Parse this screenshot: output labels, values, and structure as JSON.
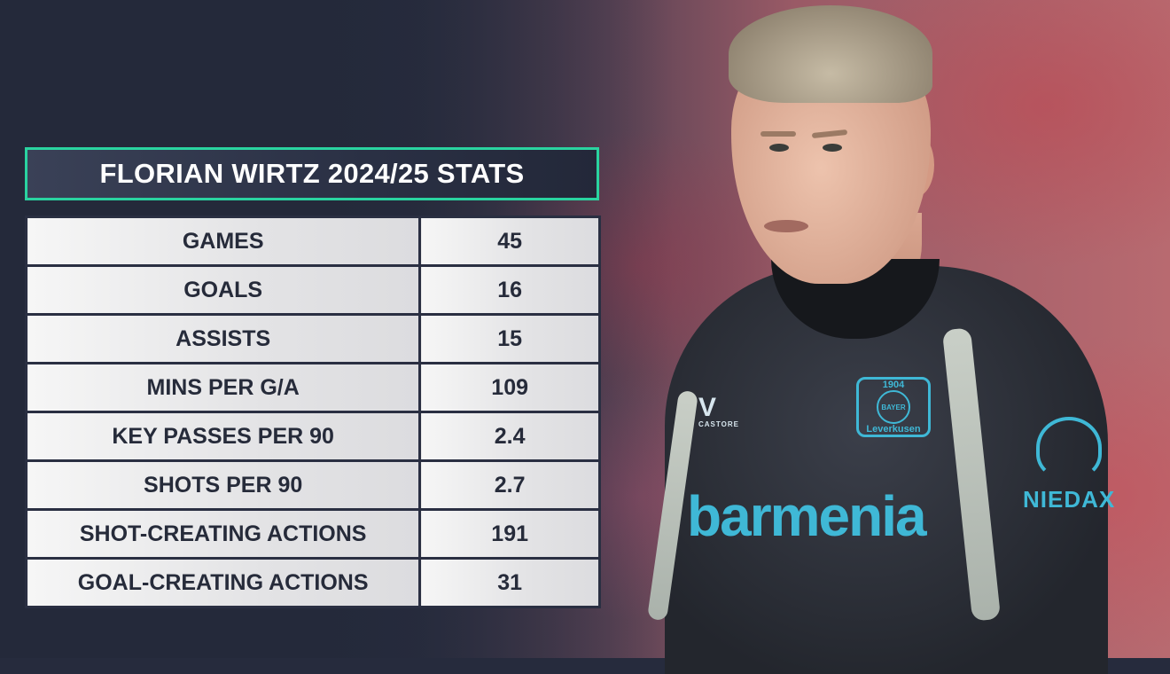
{
  "title": "FLORIAN WIRTZ 2024/25 STATS",
  "accent_color": "#2ad3a0",
  "stats": [
    {
      "label": "GAMES",
      "value": "45"
    },
    {
      "label": "GOALS",
      "value": "16"
    },
    {
      "label": "ASSISTS",
      "value": "15"
    },
    {
      "label": "MINS PER G/A",
      "value": "109"
    },
    {
      "label": "KEY PASSES PER 90",
      "value": "2.4"
    },
    {
      "label": "SHOTS PER 90",
      "value": "2.7"
    },
    {
      "label": "SHOT-CREATING ACTIONS",
      "value": "191"
    },
    {
      "label": "GOAL-CREATING ACTIONS",
      "value": "31"
    }
  ],
  "photo": {
    "shirt_sponsor": "barmenia",
    "crest_text": "BAYER",
    "crest_year": "1904",
    "crest_city": "Leverkusen",
    "kit_brand": "CASTORE",
    "sleeve_sponsor": "NIEDAX"
  }
}
